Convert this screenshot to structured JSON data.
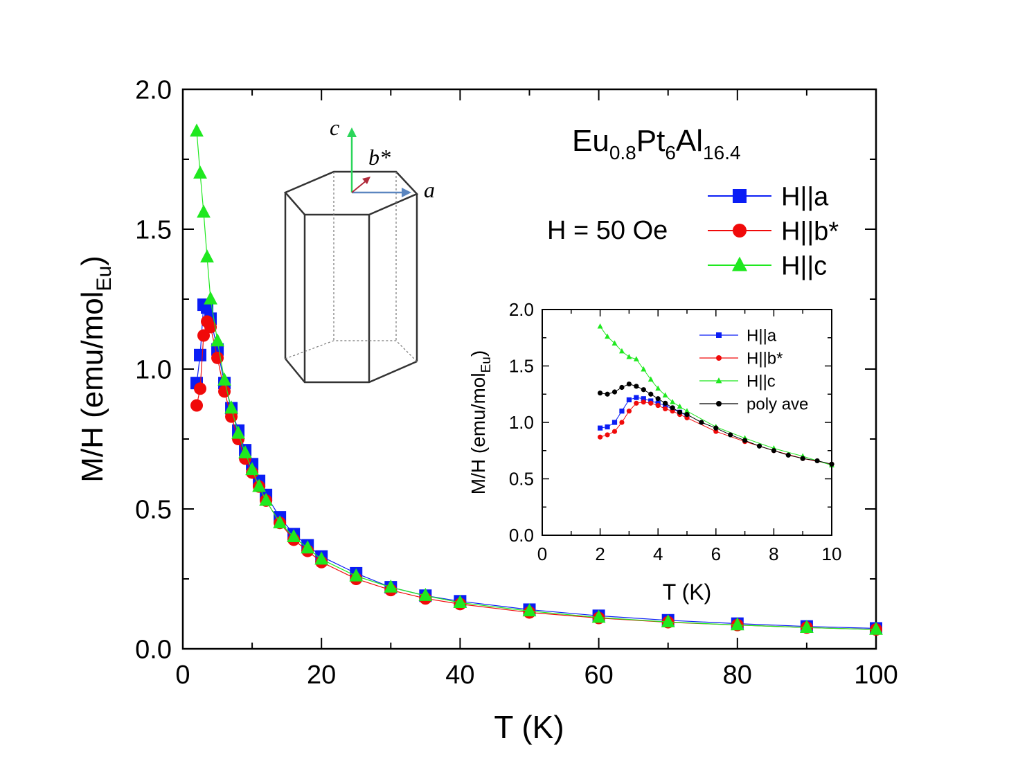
{
  "chart_data": [
    {
      "type": "scatter",
      "title": "",
      "xlabel": "T (K)",
      "ylabel": "M/H (emu/mol",
      "ylabel_sub": "Eu",
      "ylabel_end": ")",
      "xlim": [
        0,
        100
      ],
      "ylim": [
        0,
        2.0
      ],
      "xticks": [
        0,
        20,
        40,
        60,
        80,
        100
      ],
      "yticks": [
        0,
        0.5,
        1.0,
        1.5,
        2.0
      ],
      "xtick_labels": [
        "0",
        "20",
        "40",
        "60",
        "80",
        "100"
      ],
      "ytick_labels": [
        "0.0",
        "0.5",
        "1.0",
        "1.5",
        "2.0"
      ],
      "compound": {
        "base": "Eu",
        "s1": "0.8",
        "m2": "Pt",
        "s2": "6",
        "m3": "Al",
        "s3": "16.4"
      },
      "field_label": "H = 50 Oe",
      "legend_position": "top-right",
      "series": [
        {
          "name": "H||a",
          "color": "#0a1df5",
          "marker": "square",
          "x": [
            2,
            2.5,
            3,
            3.5,
            4,
            5,
            6,
            7,
            8,
            9,
            10,
            11,
            12,
            14,
            16,
            18,
            20,
            25,
            30,
            35,
            40,
            50,
            60,
            70,
            80,
            90,
            100
          ],
          "y": [
            0.95,
            1.05,
            1.23,
            1.22,
            1.18,
            1.07,
            0.95,
            0.86,
            0.78,
            0.71,
            0.66,
            0.6,
            0.55,
            0.47,
            0.41,
            0.37,
            0.33,
            0.27,
            0.22,
            0.19,
            0.17,
            0.14,
            0.118,
            0.102,
            0.09,
            0.08,
            0.073
          ]
        },
        {
          "name": "H||b*",
          "color": "#f00a0a",
          "marker": "circle",
          "x": [
            2,
            2.5,
            3,
            3.5,
            4,
            5,
            6,
            7,
            8,
            9,
            10,
            11,
            12,
            14,
            16,
            18,
            20,
            25,
            30,
            35,
            40,
            50,
            60,
            70,
            80,
            90,
            100
          ],
          "y": [
            0.87,
            0.93,
            1.12,
            1.17,
            1.15,
            1.04,
            0.92,
            0.83,
            0.75,
            0.68,
            0.63,
            0.58,
            0.53,
            0.45,
            0.39,
            0.35,
            0.31,
            0.25,
            0.21,
            0.18,
            0.16,
            0.13,
            0.11,
            0.095,
            0.085,
            0.076,
            0.069
          ]
        },
        {
          "name": "H||c",
          "color": "#1fe81f",
          "marker": "triangle",
          "x": [
            2,
            2.5,
            3,
            3.5,
            4,
            5,
            6,
            7,
            8,
            9,
            10,
            11,
            12,
            14,
            16,
            18,
            20,
            25,
            30,
            35,
            40,
            50,
            60,
            70,
            80,
            90,
            100
          ],
          "y": [
            1.85,
            1.7,
            1.56,
            1.4,
            1.25,
            1.1,
            0.96,
            0.86,
            0.77,
            0.7,
            0.64,
            0.58,
            0.53,
            0.45,
            0.4,
            0.36,
            0.32,
            0.26,
            0.22,
            0.19,
            0.165,
            0.135,
            0.112,
            0.096,
            0.085,
            0.076,
            0.069
          ]
        }
      ]
    },
    {
      "type": "scatter",
      "title": "",
      "xlabel": "T (K)",
      "ylabel": "M/H (emu/mol",
      "ylabel_sub": "Eu",
      "ylabel_end": ")",
      "xlim": [
        0,
        10
      ],
      "ylim": [
        0,
        2.0
      ],
      "xticks": [
        0,
        2,
        4,
        6,
        8,
        10
      ],
      "yticks": [
        0,
        0.5,
        1.0,
        1.5,
        2.0
      ],
      "xtick_labels": [
        "0",
        "2",
        "4",
        "6",
        "8",
        "10"
      ],
      "ytick_labels": [
        "0.0",
        "0.5",
        "1.0",
        "1.5",
        "2.0"
      ],
      "legend_position": "top-right",
      "series": [
        {
          "name": "H||a",
          "color": "#0a1df5",
          "marker": "square",
          "x": [
            2.0,
            2.25,
            2.5,
            2.75,
            3.0,
            3.25,
            3.5,
            3.75,
            4.0,
            4.25,
            4.5,
            4.75,
            5.0
          ],
          "y": [
            0.95,
            0.96,
            1.0,
            1.1,
            1.2,
            1.22,
            1.21,
            1.19,
            1.17,
            1.15,
            1.12,
            1.09,
            1.06
          ]
        },
        {
          "name": "H||b*",
          "color": "#f00a0a",
          "marker": "circle",
          "x": [
            2.0,
            2.25,
            2.5,
            2.75,
            3.0,
            3.25,
            3.5,
            3.75,
            4.0,
            4.25,
            4.5,
            4.75,
            5.0,
            6,
            7,
            8,
            9,
            10
          ],
          "y": [
            0.87,
            0.89,
            0.92,
            1.0,
            1.1,
            1.17,
            1.18,
            1.17,
            1.15,
            1.12,
            1.1,
            1.07,
            1.04,
            0.92,
            0.83,
            0.75,
            0.68,
            0.63
          ]
        },
        {
          "name": "H||c",
          "color": "#1fe81f",
          "marker": "triangle",
          "x": [
            2.0,
            2.25,
            2.5,
            2.75,
            3.0,
            3.25,
            3.5,
            3.75,
            4.0,
            4.25,
            4.5,
            4.75,
            5.0,
            6,
            7,
            8,
            9,
            10
          ],
          "y": [
            1.85,
            1.76,
            1.7,
            1.63,
            1.58,
            1.56,
            1.47,
            1.38,
            1.3,
            1.24,
            1.18,
            1.14,
            1.1,
            0.96,
            0.86,
            0.77,
            0.7,
            0.62
          ]
        },
        {
          "name": "poly ave",
          "color": "#000000",
          "marker": "dot",
          "x": [
            2.0,
            2.25,
            2.5,
            2.75,
            3.0,
            3.25,
            3.5,
            3.75,
            4.0,
            4.25,
            4.5,
            4.75,
            5.0,
            5.5,
            6,
            6.5,
            7,
            7.5,
            8,
            8.5,
            9,
            9.5,
            10
          ],
          "y": [
            1.26,
            1.25,
            1.27,
            1.31,
            1.34,
            1.32,
            1.29,
            1.25,
            1.21,
            1.17,
            1.13,
            1.09,
            1.07,
            1.0,
            0.95,
            0.89,
            0.84,
            0.79,
            0.75,
            0.71,
            0.68,
            0.66,
            0.63
          ]
        }
      ]
    }
  ],
  "crystal": {
    "c": "c",
    "b": "b*",
    "a": "a",
    "c_color": "#2bd65a",
    "b_color": "#b02a3a",
    "a_color": "#5b86c0"
  }
}
